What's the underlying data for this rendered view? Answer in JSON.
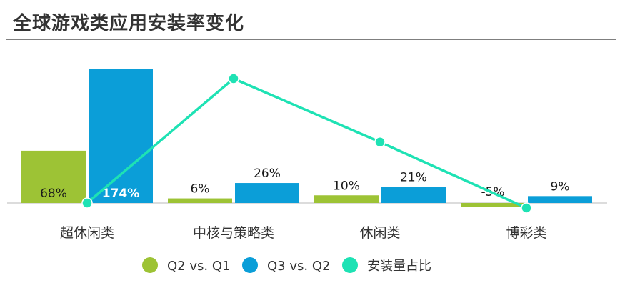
{
  "title": "全球游戏类应用安装率变化",
  "colors": {
    "q2_vs_q1": "#9dc335",
    "q3_vs_q2": "#0b9ed8",
    "install_share": "#1ee2b4",
    "axis": "#d0d0d0"
  },
  "chart_data": {
    "type": "bar",
    "title": "全球游戏类应用安装率变化",
    "categories": [
      "超休闲类",
      "中核与策略类",
      "休闲类",
      "博彩类"
    ],
    "series": [
      {
        "name": "Q2 vs. Q1",
        "type": "bar",
        "values": [
          68,
          6,
          10,
          -5
        ],
        "labels": [
          "68%",
          "6%",
          "10%",
          "-5%"
        ]
      },
      {
        "name": "Q3 vs. Q2",
        "type": "bar",
        "values": [
          174,
          26,
          21,
          9
        ],
        "labels": [
          "174%",
          "26%",
          "21%",
          "9%"
        ]
      },
      {
        "name": "安装量占比",
        "type": "line",
        "values": [
          0,
          100,
          49,
          -4
        ]
      }
    ],
    "legend_position": "bottom",
    "grid": false
  },
  "legend": [
    "Q2 vs. Q1",
    "Q3 vs. Q2",
    "安装量占比"
  ]
}
